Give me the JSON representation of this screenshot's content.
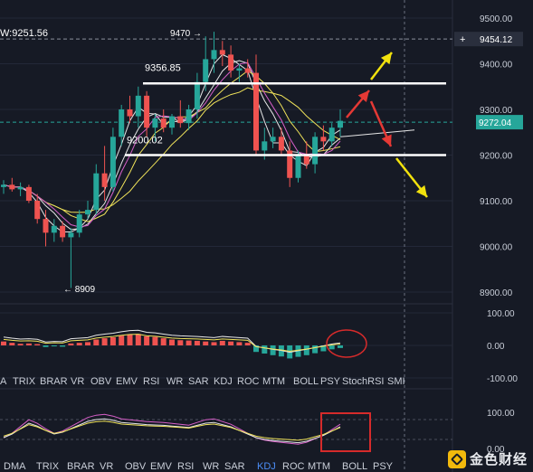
{
  "chart_data": {
    "type": "candlestick",
    "price_axis": {
      "ticks": [
        "9500.00",
        "9400.00",
        "9300.00",
        "9200.00",
        "9100.00",
        "9000.00",
        "8900.00"
      ],
      "ylim": [
        8860,
        9520
      ]
    },
    "current_price": "9272.04",
    "crosshair_price": "9454.12",
    "header_value": "W:9251.56",
    "annotations": {
      "high_label": "9470 →",
      "low_label": "← 8909",
      "resistance_label": "9356.85",
      "support_label": "9200.02"
    },
    "levels": [
      9356.85,
      9200.02
    ],
    "candles": [
      {
        "o": 9130,
        "h": 9145,
        "l": 9115,
        "c": 9135
      },
      {
        "o": 9135,
        "h": 9150,
        "l": 9120,
        "c": 9125
      },
      {
        "o": 9125,
        "h": 9140,
        "l": 9110,
        "c": 9130
      },
      {
        "o": 9130,
        "h": 9135,
        "l": 9095,
        "c": 9100
      },
      {
        "o": 9100,
        "h": 9115,
        "l": 9050,
        "c": 9060
      },
      {
        "o": 9060,
        "h": 9080,
        "l": 9000,
        "c": 9030
      },
      {
        "o": 9030,
        "h": 9060,
        "l": 9010,
        "c": 9045
      },
      {
        "o": 9045,
        "h": 9055,
        "l": 9010,
        "c": 9020
      },
      {
        "o": 9020,
        "h": 9040,
        "l": 8909,
        "c": 9030
      },
      {
        "o": 9030,
        "h": 9080,
        "l": 9020,
        "c": 9070
      },
      {
        "o": 9070,
        "h": 9100,
        "l": 9060,
        "c": 9080
      },
      {
        "o": 9080,
        "h": 9180,
        "l": 9070,
        "c": 9160
      },
      {
        "o": 9160,
        "h": 9220,
        "l": 9100,
        "c": 9130
      },
      {
        "o": 9130,
        "h": 9260,
        "l": 9120,
        "c": 9240
      },
      {
        "o": 9240,
        "h": 9310,
        "l": 9220,
        "c": 9300
      },
      {
        "o": 9300,
        "h": 9330,
        "l": 9270,
        "c": 9285
      },
      {
        "o": 9285,
        "h": 9350,
        "l": 9260,
        "c": 9330
      },
      {
        "o": 9330,
        "h": 9340,
        "l": 9240,
        "c": 9260
      },
      {
        "o": 9260,
        "h": 9290,
        "l": 9230,
        "c": 9280
      },
      {
        "o": 9280,
        "h": 9300,
        "l": 9250,
        "c": 9260
      },
      {
        "o": 9260,
        "h": 9290,
        "l": 9245,
        "c": 9285
      },
      {
        "o": 9285,
        "h": 9320,
        "l": 9260,
        "c": 9270
      },
      {
        "o": 9270,
        "h": 9310,
        "l": 9255,
        "c": 9300
      },
      {
        "o": 9300,
        "h": 9380,
        "l": 9280,
        "c": 9360
      },
      {
        "o": 9360,
        "h": 9460,
        "l": 9340,
        "c": 9410
      },
      {
        "o": 9410,
        "h": 9470,
        "l": 9380,
        "c": 9430
      },
      {
        "o": 9430,
        "h": 9450,
        "l": 9395,
        "c": 9420
      },
      {
        "o": 9420,
        "h": 9440,
        "l": 9370,
        "c": 9385
      },
      {
        "o": 9385,
        "h": 9400,
        "l": 9360,
        "c": 9390
      },
      {
        "o": 9390,
        "h": 9410,
        "l": 9370,
        "c": 9380
      },
      {
        "o": 9380,
        "h": 9420,
        "l": 9200,
        "c": 9210
      },
      {
        "o": 9210,
        "h": 9260,
        "l": 9190,
        "c": 9230
      },
      {
        "o": 9230,
        "h": 9260,
        "l": 9215,
        "c": 9240
      },
      {
        "o": 9240,
        "h": 9260,
        "l": 9200,
        "c": 9210
      },
      {
        "o": 9210,
        "h": 9230,
        "l": 9130,
        "c": 9150
      },
      {
        "o": 9150,
        "h": 9210,
        "l": 9140,
        "c": 9200
      },
      {
        "o": 9200,
        "h": 9230,
        "l": 9170,
        "c": 9180
      },
      {
        "o": 9180,
        "h": 9250,
        "l": 9160,
        "c": 9240
      },
      {
        "o": 9240,
        "h": 9265,
        "l": 9210,
        "c": 9230
      },
      {
        "o": 9230,
        "h": 9270,
        "l": 9220,
        "c": 9260
      },
      {
        "o": 9260,
        "h": 9300,
        "l": 9240,
        "c": 9275
      }
    ],
    "histogram_axis": {
      "ticks": [
        "100.00",
        "0.00",
        "-100.00"
      ]
    },
    "histogram": [
      12,
      8,
      5,
      6,
      4,
      -5,
      -3,
      -4,
      6,
      8,
      10,
      18,
      22,
      25,
      30,
      34,
      35,
      28,
      26,
      22,
      18,
      16,
      15,
      14,
      12,
      10,
      14,
      12,
      10,
      8,
      -20,
      -25,
      -30,
      -34,
      -40,
      -35,
      -30,
      -24,
      -18,
      -12,
      -8
    ],
    "kdj_axis": {
      "ticks": [
        "100.00",
        "0.00"
      ]
    },
    "indicator_tabs_top": [
      "A",
      "TRIX",
      "BRAR",
      "VR",
      "OBV",
      "EMV",
      "RSI",
      "WR",
      "SAR",
      "KDJ",
      "ROC",
      "MTM",
      "BOLL",
      "PSY",
      "StochRSI",
      "SMI"
    ],
    "indicator_tabs_bottom": [
      "DMA",
      "TRIX",
      "BRAR",
      "VR",
      "OBV",
      "EMV",
      "RSI",
      "WR",
      "SAR",
      "KDJ",
      "ROC",
      "MTM",
      "BOLL",
      "PSY"
    ],
    "active_tab_bottom": "KDJ"
  },
  "colors": {
    "background": "#161a25",
    "up": "#26a69a",
    "down": "#ef5350",
    "ma_white": "#e6e6e6",
    "ma_yellow": "#f0e35a",
    "ma_pink": "#d65fc8",
    "current_price_bg": "#26a69a",
    "arrow_red": "#e53935",
    "arrow_yellow": "#f2e20d",
    "highlight_box": "#d62b2b",
    "kdj_active": "#4c8ef7"
  },
  "watermark": {
    "text": "金色财经"
  }
}
